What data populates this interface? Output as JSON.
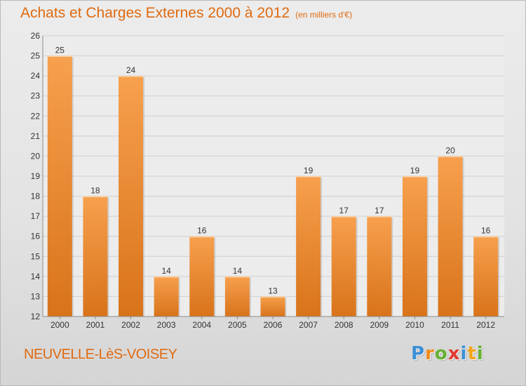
{
  "header": {
    "title": "Achats et Charges Externes 2000 à 2012",
    "subtitle": "(en milliers d'€)"
  },
  "footer": {
    "place": "NEUVELLE-LèS-VOISEY",
    "logo_letters": [
      {
        "char": "P",
        "color": "#3b8fd6"
      },
      {
        "char": "r",
        "color": "#f08a1c"
      },
      {
        "char": "o",
        "color": "#66b032"
      },
      {
        "char": "x",
        "color": "#e23a2e"
      },
      {
        "char": "i",
        "color": "#3b8fd6"
      },
      {
        "char": "t",
        "color": "#f2a51c"
      },
      {
        "char": "i",
        "color": "#66b032"
      }
    ]
  },
  "chart_data": {
    "type": "bar",
    "categories": [
      "2000",
      "2001",
      "2002",
      "2003",
      "2004",
      "2005",
      "2006",
      "2007",
      "2008",
      "2009",
      "2010",
      "2011",
      "2012"
    ],
    "values": [
      25,
      18,
      24,
      14,
      16,
      14,
      13,
      19,
      17,
      17,
      19,
      20,
      16
    ],
    "ylim": [
      12,
      26
    ],
    "yticks": [
      12,
      13,
      14,
      15,
      16,
      17,
      18,
      19,
      20,
      21,
      22,
      23,
      24,
      25,
      26
    ],
    "grid": true,
    "bar_color_top": "#f7a04e",
    "bar_color_bottom": "#d8731a",
    "label_color": "#333333"
  }
}
